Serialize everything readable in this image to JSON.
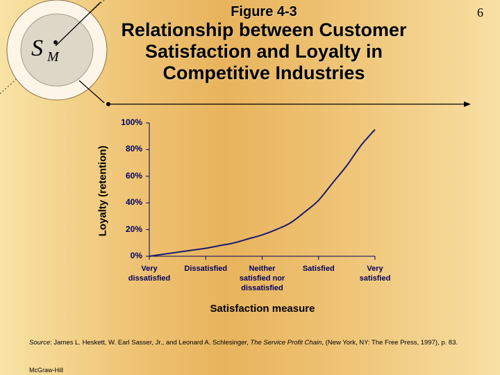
{
  "slide_number": "6",
  "logo": {
    "letter_main": "S",
    "letter_sub": "M"
  },
  "title": {
    "figure_label": "Figure 4-3",
    "line1": "Relationship between Customer",
    "line2": "Satisfaction and Loyalty in",
    "line3": "Competitive Industries"
  },
  "chart_data": {
    "type": "line",
    "title": "",
    "xlabel": "Satisfaction measure",
    "ylabel": "Loyalty (retention)",
    "categories": [
      [
        "Very",
        "dissatisfied"
      ],
      [
        "Dissatisfied"
      ],
      [
        "Neither",
        "satisfied nor",
        "dissatisfied"
      ],
      [
        "Satisfied"
      ],
      [
        "Very",
        "satisfied"
      ]
    ],
    "y_ticks": [
      "0%",
      "20%",
      "40%",
      "60%",
      "80%",
      "100%"
    ],
    "ylim": [
      0,
      100
    ],
    "grid": false,
    "series": [
      {
        "x": [
          0,
          0.25,
          0.5,
          0.75,
          1,
          1.25,
          1.5,
          1.75,
          2,
          2.25,
          2.5,
          2.75,
          3,
          3.25,
          3.5,
          3.75,
          4
        ],
        "y": [
          0,
          1.5,
          3,
          4.5,
          6,
          8,
          10,
          13,
          16,
          20,
          25,
          33,
          42,
          55,
          68,
          83,
          95
        ]
      }
    ],
    "line_color": "#1a1a6e"
  },
  "source": {
    "prefix": "Source",
    "authors": ": James L. Heskett, W. Earl Sasser, Jr., and Leonard A. Schlesinger, ",
    "book": "The Service Profit Chain",
    "tail": ", (New York, NY: The Free Press, 1997), p. 83."
  },
  "publisher": "McGraw-Hill"
}
